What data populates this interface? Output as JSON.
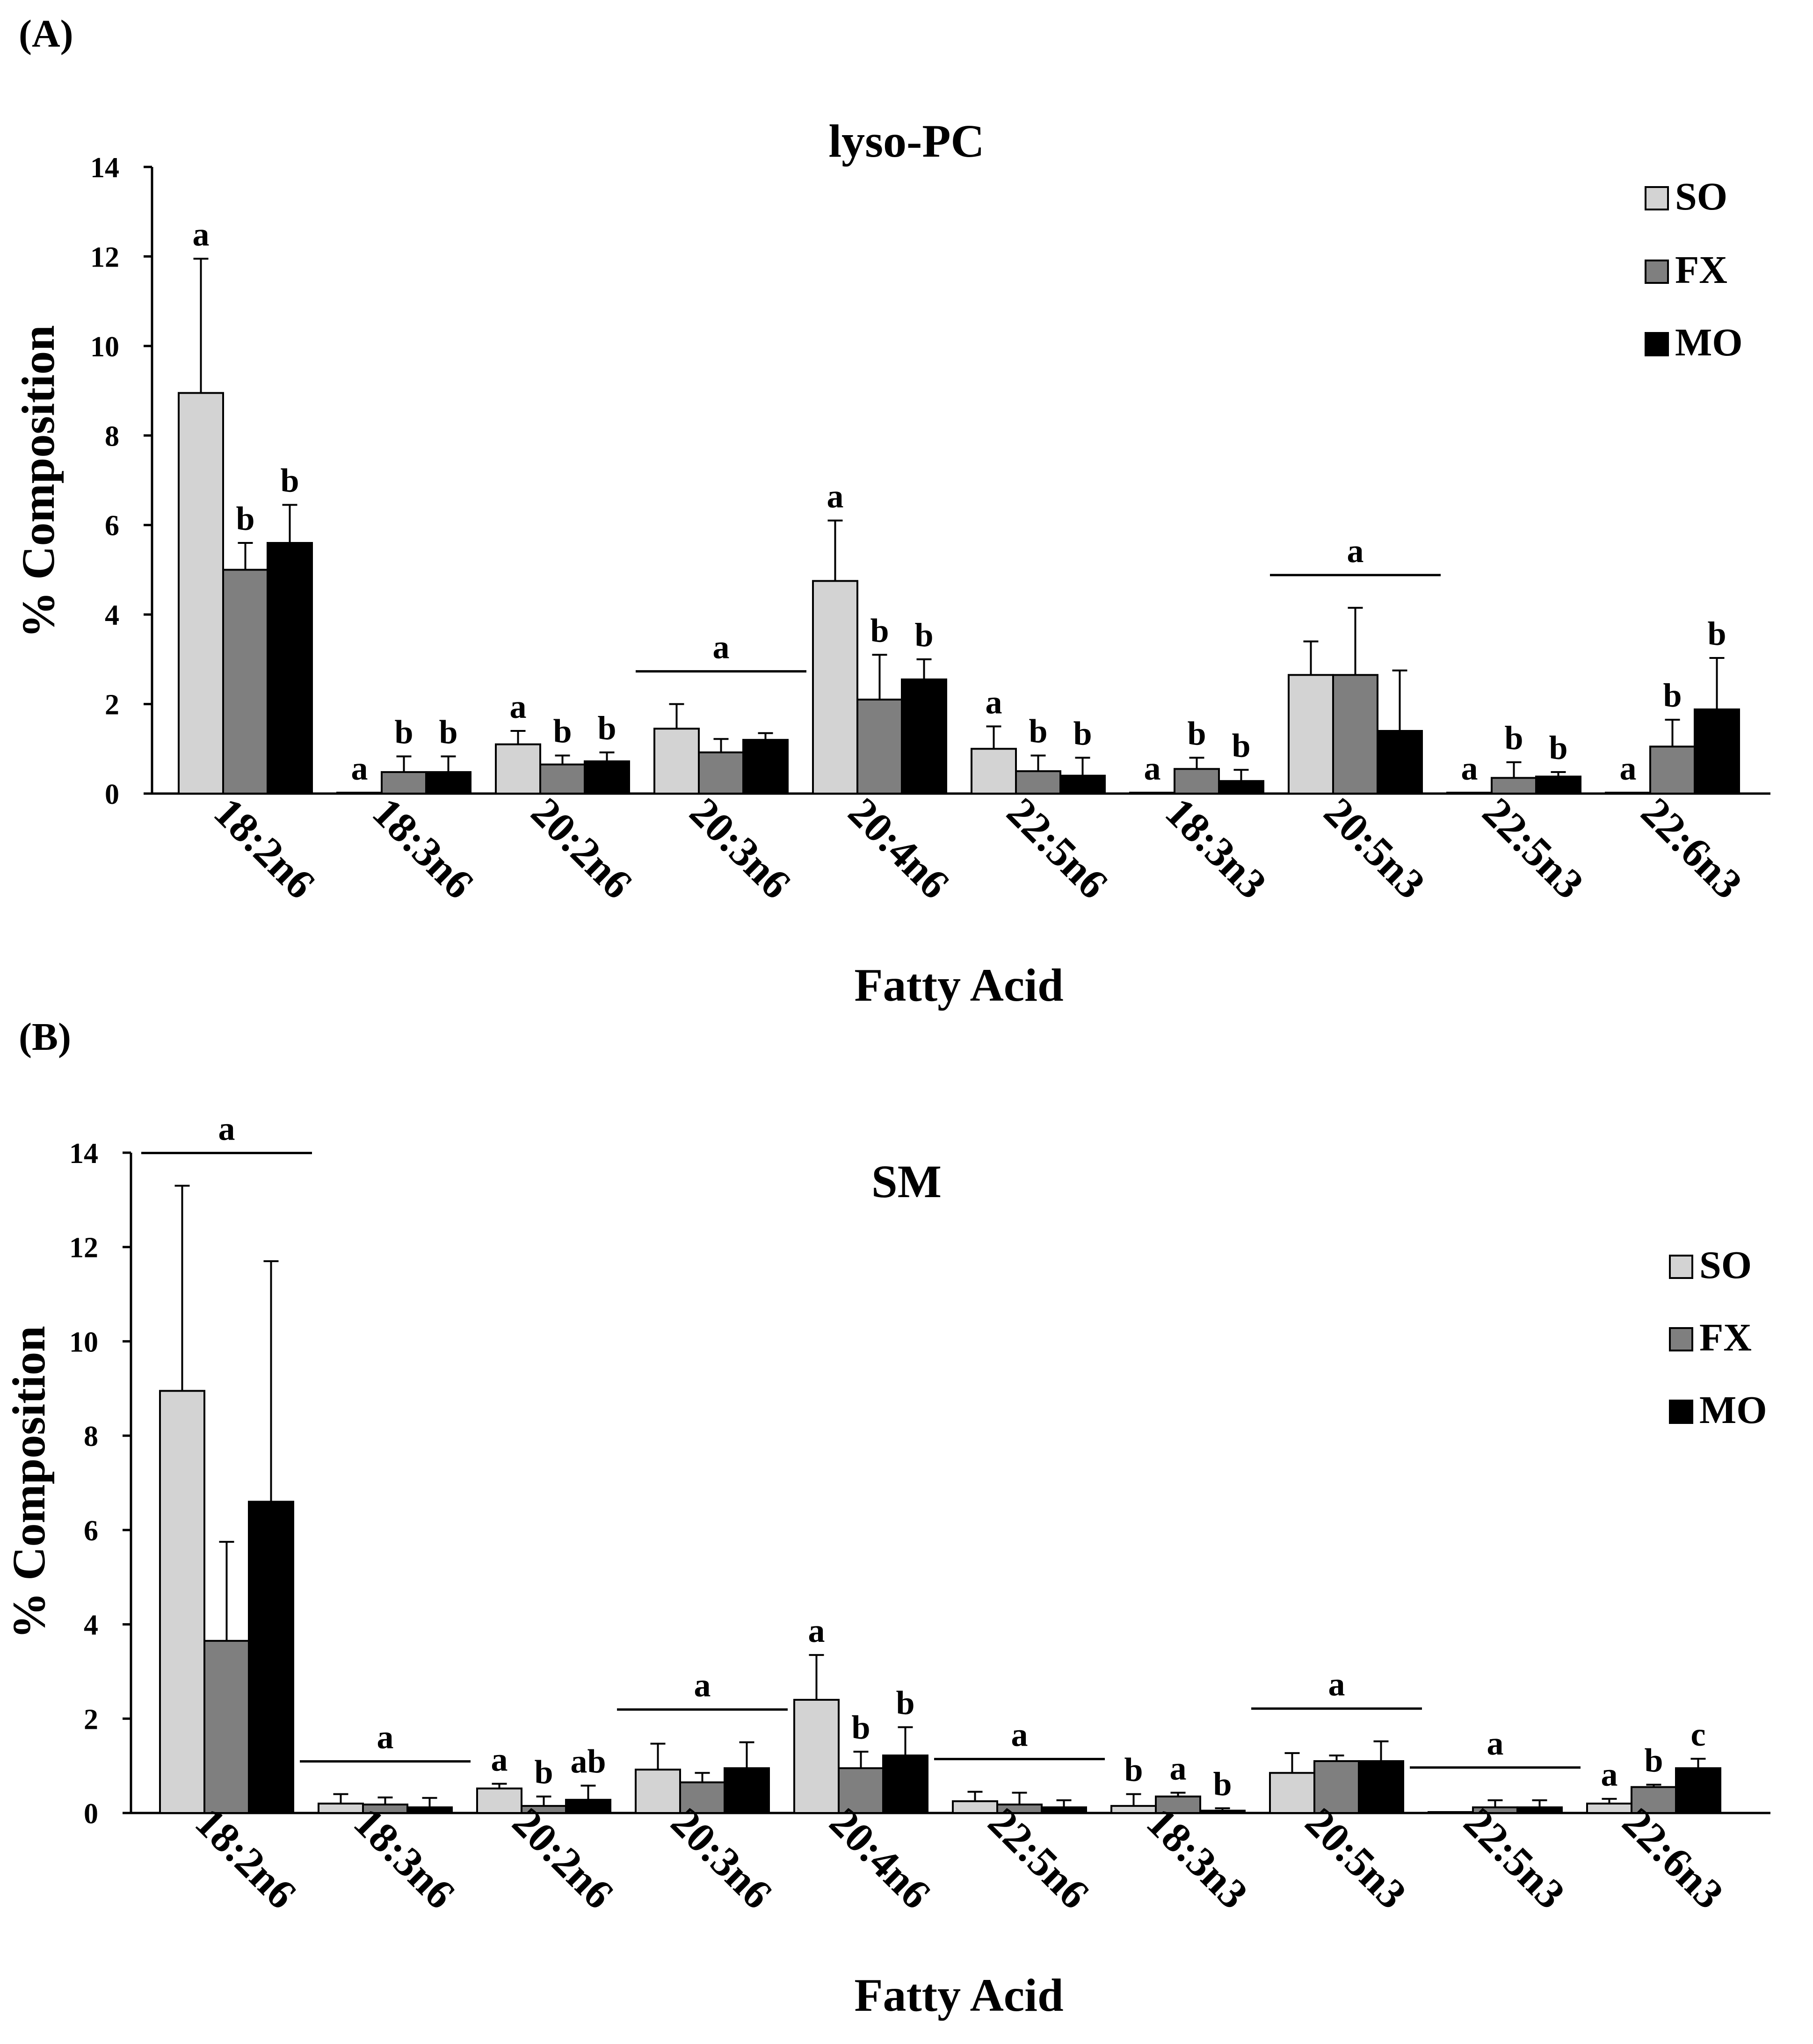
{
  "figure": {
    "panels": [
      {
        "label": "(A)"
      },
      {
        "label": "(B)"
      }
    ]
  },
  "chart_data": [
    {
      "type": "bar",
      "title": "lyso-PC",
      "xlabel": "Fatty Acid",
      "ylabel": "% Composition",
      "ylim": [
        0,
        14
      ],
      "yticks": [
        "0",
        "2",
        "4",
        "6",
        "8",
        "10",
        "12",
        "14"
      ],
      "categories": [
        "18:2n6",
        "18:3n6",
        "20:2n6",
        "20:3n6",
        "20:4n6",
        "22:5n6",
        "18:3n3",
        "20:5n3",
        "22:5n3",
        "22:6n3"
      ],
      "series": [
        {
          "name": "SO",
          "color": "#d3d3d3",
          "values": [
            8.95,
            0.02,
            1.1,
            1.45,
            4.75,
            1.0,
            0.02,
            2.65,
            0.02,
            0.02
          ],
          "errors": [
            3.0,
            0.0,
            0.3,
            0.55,
            1.35,
            0.5,
            0.0,
            0.75,
            0.0,
            0.0
          ]
        },
        {
          "name": "FX",
          "color": "#7f7f7f",
          "values": [
            5.0,
            0.48,
            0.65,
            0.92,
            2.1,
            0.5,
            0.55,
            2.65,
            0.35,
            1.05
          ],
          "errors": [
            0.6,
            0.35,
            0.2,
            0.3,
            1.0,
            0.35,
            0.25,
            1.5,
            0.35,
            0.6
          ]
        },
        {
          "name": "MO",
          "color": "#000000",
          "values": [
            5.6,
            0.48,
            0.72,
            1.2,
            2.55,
            0.4,
            0.28,
            1.4,
            0.38,
            1.88
          ],
          "errors": [
            0.85,
            0.35,
            0.2,
            0.15,
            0.45,
            0.4,
            0.25,
            1.35,
            0.1,
            1.15
          ]
        }
      ],
      "significance": [
        {
          "category": "18:2n6",
          "letters": [
            "a",
            "b",
            "b"
          ]
        },
        {
          "category": "18:3n6",
          "letters": [
            "a",
            "b",
            "b"
          ]
        },
        {
          "category": "20:2n6",
          "letters": [
            "a",
            "b",
            "b"
          ]
        },
        {
          "category": "20:3n6",
          "group_letter": "a"
        },
        {
          "category": "20:4n6",
          "letters": [
            "a",
            "b",
            "b"
          ]
        },
        {
          "category": "22:5n6",
          "letters": [
            "a",
            "b",
            "b"
          ]
        },
        {
          "category": "18:3n3",
          "letters": [
            "a",
            "b",
            "b"
          ]
        },
        {
          "category": "20:5n3",
          "group_letter": "a"
        },
        {
          "category": "22:5n3",
          "letters": [
            "a",
            "b",
            "b"
          ]
        },
        {
          "category": "22:6n3",
          "letters": [
            "a",
            "b",
            "b"
          ]
        }
      ],
      "legend": {
        "position": "top-right",
        "entries": [
          "SO",
          "FX",
          "MO"
        ]
      }
    },
    {
      "type": "bar",
      "title": "SM",
      "xlabel": "Fatty Acid",
      "ylabel": "% Composition",
      "ylim": [
        0,
        14
      ],
      "yticks": [
        "0",
        "2",
        "4",
        "6",
        "8",
        "10",
        "12",
        "14"
      ],
      "categories": [
        "18:2n6",
        "18:3n6",
        "20:2n6",
        "20:3n6",
        "20:4n6",
        "22:5n6",
        "18:3n3",
        "20:5n3",
        "22:5n3",
        "22:6n3"
      ],
      "series": [
        {
          "name": "SO",
          "color": "#d3d3d3",
          "values": [
            8.95,
            0.2,
            0.52,
            0.92,
            2.4,
            0.25,
            0.15,
            0.85,
            0.02,
            0.2
          ],
          "errors": [
            4.35,
            0.2,
            0.1,
            0.55,
            0.95,
            0.2,
            0.25,
            0.42,
            0.0,
            0.1
          ]
        },
        {
          "name": "FX",
          "color": "#7f7f7f",
          "values": [
            3.65,
            0.18,
            0.15,
            0.65,
            0.95,
            0.18,
            0.35,
            1.1,
            0.12,
            0.55
          ],
          "errors": [
            2.1,
            0.15,
            0.2,
            0.2,
            0.35,
            0.25,
            0.08,
            0.12,
            0.15,
            0.05
          ]
        },
        {
          "name": "MO",
          "color": "#000000",
          "values": [
            6.6,
            0.12,
            0.28,
            0.95,
            1.22,
            0.12,
            0.05,
            1.1,
            0.12,
            0.95
          ],
          "errors": [
            5.1,
            0.2,
            0.3,
            0.55,
            0.6,
            0.15,
            0.05,
            0.42,
            0.15,
            0.2
          ]
        }
      ],
      "significance": [
        {
          "category": "18:2n6",
          "group_letter": "a"
        },
        {
          "category": "18:3n6",
          "group_letter": "a"
        },
        {
          "category": "20:2n6",
          "letters": [
            "a",
            "b",
            "ab"
          ]
        },
        {
          "category": "20:3n6",
          "group_letter": "a"
        },
        {
          "category": "20:4n6",
          "letters": [
            "a",
            "b",
            "b"
          ]
        },
        {
          "category": "22:5n6",
          "group_letter": "a"
        },
        {
          "category": "18:3n3",
          "letters": [
            "b",
            "a",
            "b"
          ]
        },
        {
          "category": "20:5n3",
          "group_letter": "a"
        },
        {
          "category": "22:5n3",
          "group_letter": "a"
        },
        {
          "category": "22:6n3",
          "letters": [
            "a",
            "b",
            "c"
          ]
        }
      ],
      "legend": {
        "position": "right",
        "entries": [
          "SO",
          "FX",
          "MO"
        ]
      }
    }
  ]
}
